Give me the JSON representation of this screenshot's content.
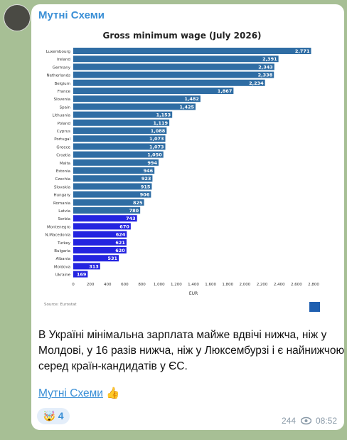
{
  "channel_name": "Мутні Схеми",
  "chart_data": {
    "type": "bar",
    "orientation": "horizontal",
    "title": "Gross minimum wage (July 2026)",
    "categories": [
      "Luxembourg",
      "Ireland",
      "Germany",
      "Netherlands",
      "Belgium",
      "France",
      "Slovenia",
      "Spain",
      "Lithuania",
      "Poland",
      "Cyprus",
      "Portugal",
      "Greece",
      "Croatia",
      "Malta",
      "Estonia",
      "Czechia",
      "Slovakia",
      "Hungary",
      "Romania",
      "Latvia",
      "Serbia",
      "Montenegro",
      "N.Macedonia",
      "Turkey",
      "Bulgaria",
      "Albania",
      "Moldova",
      "Ukraine"
    ],
    "values": [
      2771,
      2391,
      2343,
      2338,
      2234,
      1867,
      1482,
      1425,
      1153,
      1119,
      1088,
      1073,
      1073,
      1050,
      994,
      946,
      923,
      915,
      906,
      825,
      780,
      743,
      670,
      624,
      621,
      620,
      531,
      313,
      169
    ],
    "value_labels": [
      "2,771",
      "2,391",
      "2,343",
      "2,338",
      "2,234",
      "1,867",
      "1,482",
      "1,425",
      "1,153",
      "1,119",
      "1,088",
      "1,073",
      "1,073",
      "1,050",
      "994",
      "946",
      "923",
      "915",
      "906",
      "825",
      "780",
      "743",
      "670",
      "624",
      "621",
      "620",
      "531",
      "313",
      "169"
    ],
    "colors": [
      "#2f6da4",
      "#2f6da4",
      "#2f6da4",
      "#2f6da4",
      "#2f6da4",
      "#2f6da4",
      "#2f6da4",
      "#2f6da4",
      "#2f6da4",
      "#2f6da4",
      "#2f6da4",
      "#2f6da4",
      "#2f6da4",
      "#2f6da4",
      "#2f6da4",
      "#2f6da4",
      "#2f6da4",
      "#2f6da4",
      "#2f6da4",
      "#2f6da4",
      "#2f6da4",
      "#2424e0",
      "#2424e0",
      "#2424e0",
      "#2424e0",
      "#2424e0",
      "#2424e0",
      "#2424e0",
      "#2424e0"
    ],
    "xlim": [
      0,
      2800
    ],
    "xticks": [
      0,
      200,
      400,
      600,
      800,
      {
        "value": 1000,
        "label": "1,000"
      },
      {
        "value": 1200,
        "label": "1,200"
      },
      {
        "value": 1400,
        "label": "1,400"
      },
      {
        "value": 1600,
        "label": "1,600"
      },
      {
        "value": 1800,
        "label": "1,800"
      },
      {
        "value": 2000,
        "label": "2,000"
      },
      {
        "value": 2200,
        "label": "2,200"
      },
      {
        "value": 2400,
        "label": "2,400"
      },
      {
        "value": 2600,
        "label": "2,600"
      },
      {
        "value": 2800,
        "label": "2,800"
      }
    ],
    "xlabel": "EUR",
    "source": "Source: Eurostat"
  },
  "message_lines": [
    "В Україні мінімальна зарплата майже вдвічі нижча, ніж у",
    "Молдові, у 16 разів нижча, ніж у Люксембурзі і є найнижчою",
    "серед країн-кандидатів у ЄС."
  ],
  "signature": "Мутні Схеми",
  "signature_emoji": "👍",
  "reaction": {
    "emoji": "🤯",
    "count": 4
  },
  "views": 244,
  "time": "08:52"
}
